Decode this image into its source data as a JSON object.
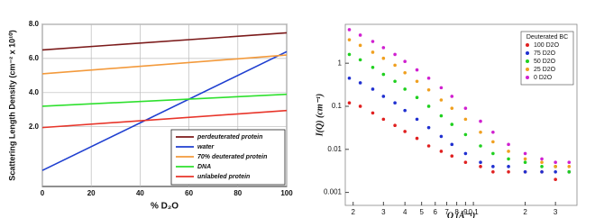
{
  "chart_data": [
    {
      "type": "line",
      "x_label": "% D₂O",
      "y_label": "Scattering Length Density (cm⁻² x 10¹⁰)",
      "x": [
        0,
        100
      ],
      "xlim": [
        0,
        100
      ],
      "xticks": [
        0,
        20,
        40,
        60,
        80,
        100
      ],
      "ylim": [
        -1.5,
        8
      ],
      "yticks": [
        {
          "value": 2,
          "label": "2.0"
        },
        {
          "value": 4,
          "label": "4.0"
        },
        {
          "value": 6,
          "label": "6.0"
        },
        {
          "value": 8,
          "label": "8.0"
        }
      ],
      "grid": true,
      "legend": "lower right",
      "series": [
        {
          "name": "perdeuterated protein",
          "color": "#7b1a1a",
          "values": [
            6.5,
            7.5
          ]
        },
        {
          "name": "water",
          "color": "#1f3fd0",
          "values": [
            -0.56,
            6.4
          ]
        },
        {
          "name": "70% deuterated protein",
          "color": "#f39a3c",
          "values": [
            5.1,
            6.2
          ]
        },
        {
          "name": "DNA",
          "color": "#2ee02e",
          "values": [
            3.2,
            3.9
          ]
        },
        {
          "name": "unlabeled protein",
          "color": "#e8352a",
          "values": [
            1.95,
            2.95
          ]
        }
      ]
    },
    {
      "type": "scatter",
      "x_label": "Q (Å⁻¹)",
      "y_label": "I(Q) (cm⁻¹)",
      "log_x": true,
      "log_y": true,
      "legend_title": "Deuterated BC",
      "legend": "upper right",
      "x": [
        0.019,
        0.022,
        0.026,
        0.03,
        0.035,
        0.04,
        0.047,
        0.055,
        0.065,
        0.075,
        0.09,
        0.11,
        0.13,
        0.16,
        0.2,
        0.25,
        0.3,
        0.36
      ],
      "xlim": [
        0.018,
        0.4
      ],
      "xticks": [
        {
          "value": 0.02,
          "label": "2"
        },
        {
          "value": 0.03,
          "label": "3"
        },
        {
          "value": 0.04,
          "label": "4"
        },
        {
          "value": 0.05,
          "label": "5"
        },
        {
          "value": 0.06,
          "label": "6"
        },
        {
          "value": 0.07,
          "label": "7"
        },
        {
          "value": 0.08,
          "label": "8"
        },
        {
          "value": 0.09,
          "label": "9"
        },
        0.1,
        {
          "value": 0.2,
          "label": "2"
        },
        {
          "value": 0.3,
          "label": "3"
        }
      ],
      "ylim": [
        0.0005,
        8
      ],
      "yticks": [
        0.001,
        0.01,
        0.1,
        1
      ],
      "series": [
        {
          "name": "100 D2O",
          "color": "#e02020",
          "values": [
            0.12,
            0.1,
            0.07,
            0.05,
            0.036,
            0.026,
            0.018,
            0.012,
            0.009,
            0.007,
            0.005,
            0.004,
            0.003,
            0.003,
            0.003,
            0.003,
            0.002,
            0.003
          ]
        },
        {
          "name": "75 D2O",
          "color": "#2030d0",
          "values": [
            0.45,
            0.35,
            0.25,
            0.17,
            0.12,
            0.08,
            0.05,
            0.032,
            0.02,
            0.013,
            0.008,
            0.005,
            0.004,
            0.004,
            0.003,
            0.003,
            0.003,
            0.003
          ]
        },
        {
          "name": "50 D2O",
          "color": "#20d020",
          "values": [
            1.6,
            1.2,
            0.8,
            0.55,
            0.38,
            0.25,
            0.16,
            0.1,
            0.06,
            0.038,
            0.022,
            0.012,
            0.008,
            0.006,
            0.005,
            0.004,
            0.004,
            0.003
          ]
        },
        {
          "name": "25 D2O",
          "color": "#f0a020",
          "values": [
            3.5,
            2.6,
            1.8,
            1.3,
            0.9,
            0.6,
            0.38,
            0.24,
            0.14,
            0.09,
            0.05,
            0.025,
            0.015,
            0.009,
            0.006,
            0.005,
            0.004,
            0.004
          ]
        },
        {
          "name": "0 D2O",
          "color": "#d020d0",
          "values": [
            6,
            4.5,
            3.2,
            2.3,
            1.6,
            1.1,
            0.7,
            0.45,
            0.27,
            0.17,
            0.09,
            0.045,
            0.025,
            0.013,
            0.008,
            0.006,
            0.005,
            0.005
          ]
        }
      ]
    }
  ]
}
